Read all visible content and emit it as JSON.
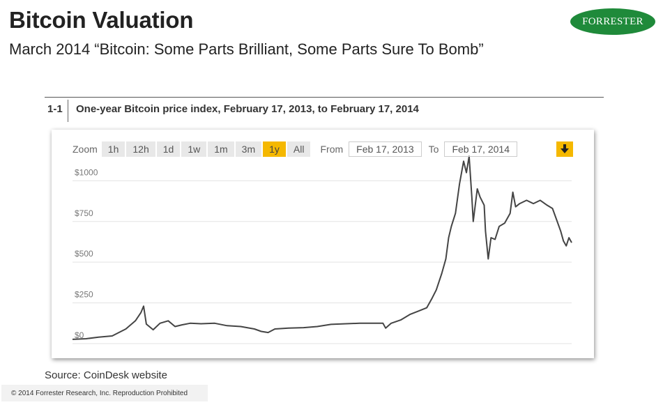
{
  "slide": {
    "title": "Bitcoin Valuation",
    "subtitle": "March 2014 “Bitcoin: Some Parts Brilliant, Some Parts Sure To Bomb”",
    "logo_text": "FORRESTER",
    "logo_color": "#1f8a3a"
  },
  "figure": {
    "number": "1-1",
    "title": "One-year Bitcoin price index, February 17, 2013, to February 17, 2014"
  },
  "toolbar": {
    "zoom_label": "Zoom",
    "zoom_options": [
      "1h",
      "12h",
      "1d",
      "1w",
      "1m",
      "3m",
      "1y",
      "All"
    ],
    "active_zoom": "1y",
    "from_label": "From",
    "from_value": "Feb 17, 2013",
    "to_label": "To",
    "to_value": "Feb 17, 2014",
    "accent_color": "#f5b800",
    "download_icon": "download-arrow-icon"
  },
  "chart_data": {
    "type": "line",
    "title": "One-year Bitcoin price index, February 17, 2013, to February 17, 2014",
    "xlabel": "",
    "ylabel": "",
    "xlim": [
      "2013-02-17",
      "2014-02-17"
    ],
    "ylim": [
      0,
      1100
    ],
    "yticks": [
      0,
      250,
      500,
      750,
      1000
    ],
    "ytick_labels": [
      "$0",
      "$250",
      "$500",
      "$750",
      "$1000"
    ],
    "grid": true,
    "line_color": "#444444",
    "series": [
      {
        "name": "",
        "points": [
          [
            "2013-02-17",
            26
          ],
          [
            "2013-02-27",
            30
          ],
          [
            "2013-03-08",
            40
          ],
          [
            "2013-03-18",
            47
          ],
          [
            "2013-03-28",
            90
          ],
          [
            "2013-04-04",
            140
          ],
          [
            "2013-04-08",
            190
          ],
          [
            "2013-04-10",
            230
          ],
          [
            "2013-04-12",
            120
          ],
          [
            "2013-04-17",
            85
          ],
          [
            "2013-04-22",
            125
          ],
          [
            "2013-04-28",
            140
          ],
          [
            "2013-05-03",
            105
          ],
          [
            "2013-05-08",
            115
          ],
          [
            "2013-05-14",
            125
          ],
          [
            "2013-05-22",
            122
          ],
          [
            "2013-06-01",
            125
          ],
          [
            "2013-06-10",
            110
          ],
          [
            "2013-06-20",
            105
          ],
          [
            "2013-06-30",
            90
          ],
          [
            "2013-07-05",
            75
          ],
          [
            "2013-07-10",
            68
          ],
          [
            "2013-07-15",
            90
          ],
          [
            "2013-07-25",
            95
          ],
          [
            "2013-08-05",
            98
          ],
          [
            "2013-08-15",
            105
          ],
          [
            "2013-08-25",
            118
          ],
          [
            "2013-09-05",
            122
          ],
          [
            "2013-09-15",
            125
          ],
          [
            "2013-09-25",
            125
          ],
          [
            "2013-10-02",
            125
          ],
          [
            "2013-10-04",
            95
          ],
          [
            "2013-10-08",
            125
          ],
          [
            "2013-10-15",
            145
          ],
          [
            "2013-10-22",
            180
          ],
          [
            "2013-10-28",
            200
          ],
          [
            "2013-11-03",
            220
          ],
          [
            "2013-11-07",
            280
          ],
          [
            "2013-11-10",
            330
          ],
          [
            "2013-11-14",
            430
          ],
          [
            "2013-11-17",
            520
          ],
          [
            "2013-11-19",
            650
          ],
          [
            "2013-11-21",
            720
          ],
          [
            "2013-11-24",
            800
          ],
          [
            "2013-11-27",
            980
          ],
          [
            "2013-11-30",
            1120
          ],
          [
            "2013-12-02",
            1050
          ],
          [
            "2013-12-04",
            1150
          ],
          [
            "2013-12-06",
            900
          ],
          [
            "2013-12-07",
            750
          ],
          [
            "2013-12-10",
            950
          ],
          [
            "2013-12-12",
            900
          ],
          [
            "2013-12-15",
            850
          ],
          [
            "2013-12-16",
            690
          ],
          [
            "2013-12-18",
            520
          ],
          [
            "2013-12-20",
            650
          ],
          [
            "2013-12-23",
            640
          ],
          [
            "2013-12-26",
            720
          ],
          [
            "2013-12-30",
            740
          ],
          [
            "2014-01-03",
            800
          ],
          [
            "2014-01-05",
            930
          ],
          [
            "2014-01-07",
            840
          ],
          [
            "2014-01-10",
            860
          ],
          [
            "2014-01-15",
            880
          ],
          [
            "2014-01-20",
            860
          ],
          [
            "2014-01-25",
            880
          ],
          [
            "2014-01-30",
            850
          ],
          [
            "2014-02-03",
            830
          ],
          [
            "2014-02-06",
            760
          ],
          [
            "2014-02-09",
            690
          ],
          [
            "2014-02-11",
            630
          ],
          [
            "2014-02-13",
            600
          ],
          [
            "2014-02-15",
            650
          ],
          [
            "2014-02-17",
            620
          ]
        ]
      }
    ]
  },
  "source": "Source: CoinDesk website",
  "copyright": "© 2014 Forrester Research, Inc. Reproduction Prohibited"
}
